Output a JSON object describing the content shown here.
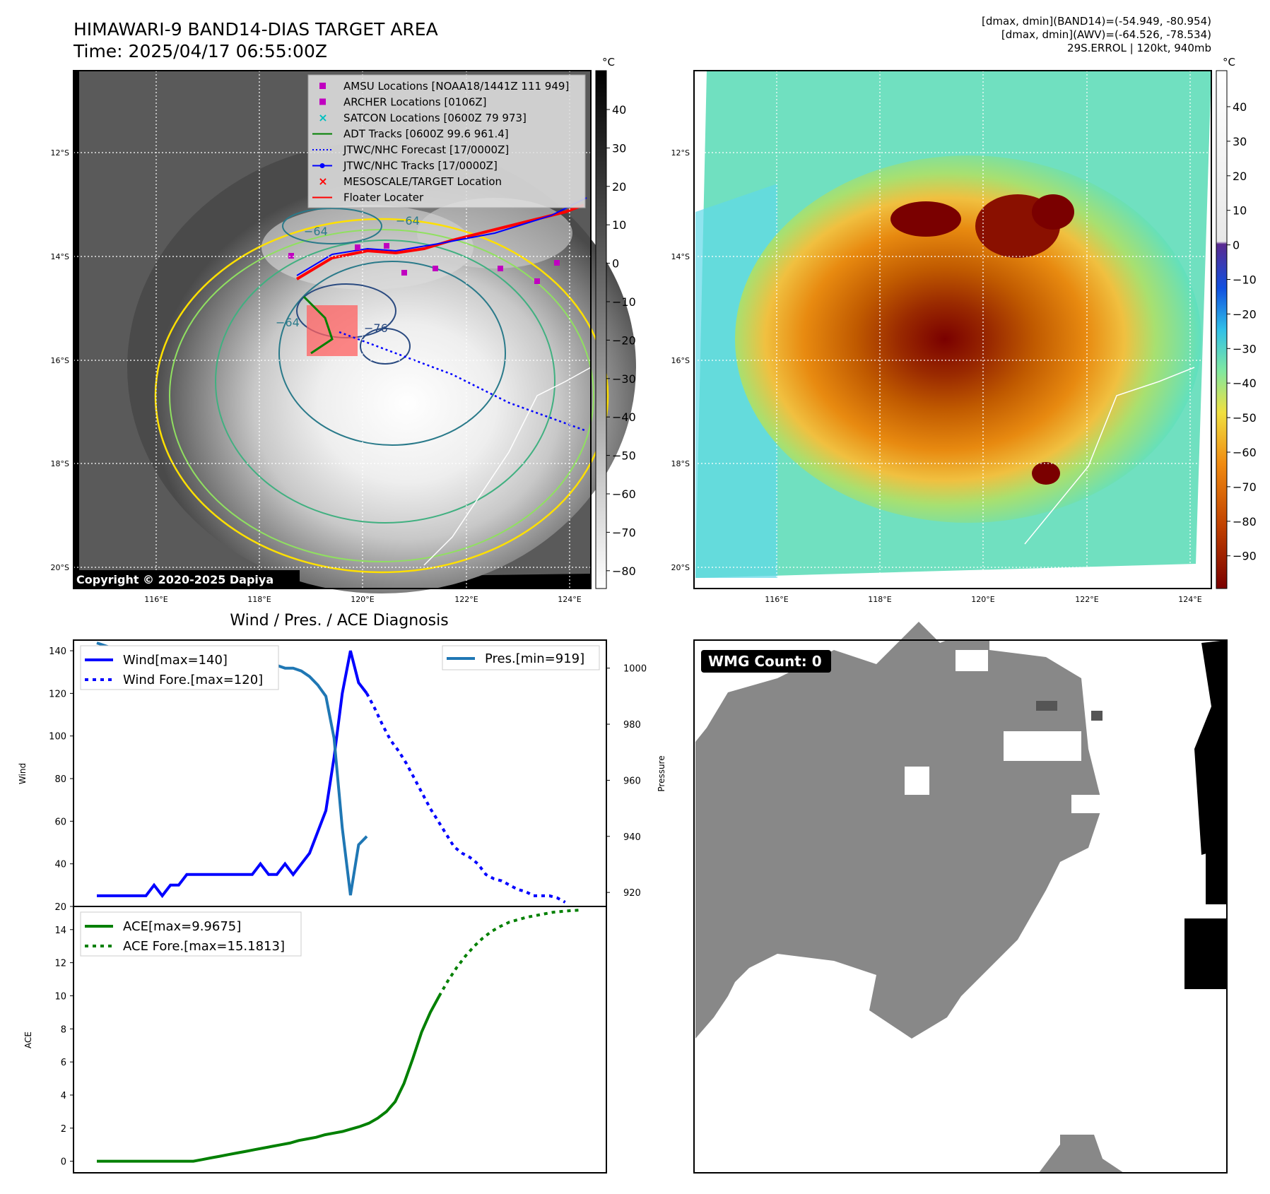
{
  "header": {
    "title_line1": "HIMAWARI-9 BAND14-DIAS TARGET AREA",
    "title_line2": "Time: 2025/04/17 06:55:00Z",
    "info_line1": "[dmax, dmin](BAND14)=(-54.949, -80.954)",
    "info_line2": "[dmax, dmin](AWV)=(-64.526, -78.534)",
    "info_line3": "29S.ERROL | 120kt, 940mb"
  },
  "map_axes": {
    "lat_ticks": [
      "12°S",
      "14°S",
      "16°S",
      "18°S",
      "20°S"
    ],
    "lon_ticks": [
      "116°E",
      "118°E",
      "120°E",
      "122°E",
      "124°E"
    ]
  },
  "ir_panel": {
    "copyright": "Copyright © 2020-2025 Dapiya",
    "colorbar_unit": "°C",
    "colorbar_ticks": [
      "40",
      "30",
      "20",
      "10",
      "0",
      "−10",
      "−20",
      "−30",
      "−40",
      "−50",
      "−60",
      "−70",
      "−80"
    ],
    "contour_labels": [
      "−64",
      "−64",
      "−64",
      "−76"
    ],
    "legend": [
      {
        "label": "AMSU Locations [NOAA18/1441Z 111 949]",
        "color": "#c000c0"
      },
      {
        "label": "ARCHER Locations [0106Z]",
        "color": "#c000c0"
      },
      {
        "label": "SATCON Locations [0600Z 79 973]",
        "color": "#00c0c0"
      },
      {
        "label": "ADT Tracks [0600Z 99.6 961.4]",
        "color": "#008000"
      },
      {
        "label": "JTWC/NHC Forecast [17/0000Z]",
        "color": "#0000ff"
      },
      {
        "label": "JTWC/NHC Tracks [17/0000Z]",
        "color": "#0000ff"
      },
      {
        "label": "MESOSCALE/TARGET Location",
        "color": "#ff0000"
      },
      {
        "label": "Floater Locater",
        "color": "#ff0000"
      }
    ]
  },
  "awv_panel": {
    "colorbar_unit": "°C",
    "colorbar_ticks": [
      "40",
      "30",
      "20",
      "10",
      "0",
      "−10",
      "−20",
      "−30",
      "−40",
      "−50",
      "−60",
      "−70",
      "−80",
      "−90"
    ]
  },
  "wmg_panel": {
    "label": "WMG Count: 0"
  },
  "chart_data": [
    {
      "type": "line",
      "title": "Wind / Pres. / ACE Diagnosis",
      "ylabel": "Wind",
      "ylabel_right": "Pressure",
      "ylim": [
        20,
        145
      ],
      "ylim_right": [
        915,
        1010
      ],
      "yticks": [
        20,
        40,
        60,
        80,
        100,
        120,
        140
      ],
      "yticks_right": [
        920,
        940,
        960,
        980,
        1000
      ],
      "series": [
        {
          "name": "Wind[max=140]",
          "style": "solid",
          "color": "#0000ff",
          "values": [
            25,
            25,
            25,
            25,
            25,
            25,
            25,
            30,
            25,
            30,
            30,
            35,
            35,
            35,
            35,
            35,
            35,
            35,
            35,
            35,
            40,
            35,
            35,
            40,
            35,
            40,
            45,
            55,
            65,
            90,
            120,
            140,
            125,
            120
          ]
        },
        {
          "name": "Wind Fore.[max=120]",
          "style": "dotted",
          "color": "#0000ff",
          "x_start": 33,
          "values": [
            120,
            113,
            105,
            98,
            93,
            87,
            80,
            73,
            66,
            60,
            54,
            48,
            45,
            43,
            40,
            35,
            33,
            32,
            30,
            28,
            27,
            25,
            25,
            25,
            24,
            22
          ]
        },
        {
          "name": "Pres.[min=919]",
          "axis": "right",
          "style": "solid",
          "color": "#1f77b4",
          "values": [
            1009,
            1008,
            1007,
            1006,
            1005,
            1004,
            1003,
            1003,
            1002,
            1002,
            1002,
            1001,
            1001,
            1001,
            1001,
            1001,
            1001,
            1001,
            1001,
            1001,
            1001,
            1001,
            1001,
            1000,
            1000,
            999,
            997,
            994,
            990,
            975,
            943,
            919,
            937,
            940
          ]
        }
      ],
      "legend_left": [
        "Wind[max=140]",
        "Wind Fore.[max=120]"
      ],
      "legend_right": [
        "Pres.[min=919]"
      ]
    },
    {
      "type": "line",
      "ylabel": "ACE",
      "ylim": [
        -0.7,
        15.4
      ],
      "yticks": [
        0,
        2,
        4,
        6,
        8,
        10,
        12,
        14
      ],
      "series": [
        {
          "name": "ACE[max=9.9675]",
          "style": "solid",
          "color": "#008000",
          "values": [
            0,
            0,
            0,
            0,
            0,
            0,
            0,
            0,
            0,
            0,
            0,
            0,
            0.1,
            0.2,
            0.3,
            0.4,
            0.5,
            0.6,
            0.7,
            0.8,
            0.9,
            1.0,
            1.1,
            1.25,
            1.35,
            1.45,
            1.6,
            1.7,
            1.8,
            1.95,
            2.1,
            2.3,
            2.6,
            3.0,
            3.6,
            4.7,
            6.2,
            7.8,
            9.0,
            9.97
          ]
        },
        {
          "name": "ACE Fore.[max=15.1813]",
          "style": "dotted",
          "color": "#008000",
          "x_start": 39,
          "values": [
            9.97,
            10.9,
            11.7,
            12.4,
            13.0,
            13.5,
            13.9,
            14.2,
            14.45,
            14.6,
            14.75,
            14.85,
            14.95,
            15.05,
            15.1,
            15.15,
            15.18
          ]
        }
      ],
      "legend_left": [
        "ACE[max=9.9675]",
        "ACE Fore.[max=15.1813]"
      ]
    }
  ]
}
